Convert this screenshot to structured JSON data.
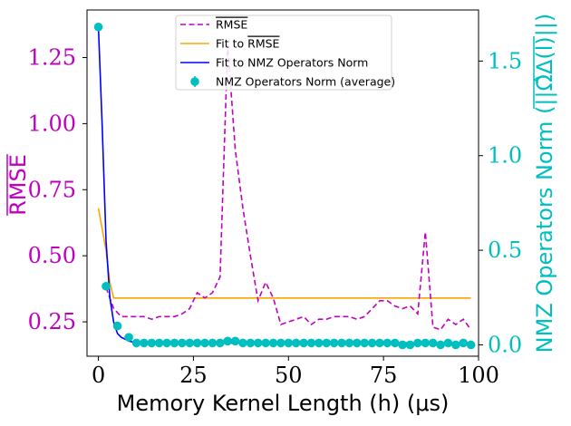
{
  "chart_data": {
    "type": "line",
    "title": "",
    "xlabel": "Memory Kernel Length (h) (μs)",
    "ylabel_left": "RMSE",
    "ylabel_right": "NMZ Operators Norm (||Ω̂Δ(l)||)",
    "xlim": [
      -3,
      100
    ],
    "ylim_left": [
      0.12,
      1.43
    ],
    "ylim_right": [
      -0.06,
      1.77
    ],
    "xticks": [
      0,
      25,
      50,
      75,
      100
    ],
    "yticks_left": [
      0.25,
      0.5,
      0.75,
      1.0,
      1.25
    ],
    "yticks_right": [
      0.0,
      0.5,
      1.0,
      1.5
    ],
    "xtick_labels": [
      "0",
      "25",
      "50",
      "75",
      "100"
    ],
    "ytick_labels_left": [
      "0.25",
      "0.50",
      "0.75",
      "1.00",
      "1.25"
    ],
    "ytick_labels_right": [
      "0.0",
      "0.5",
      "1.0",
      "1.5"
    ],
    "colors": {
      "rmse": "#c000c0",
      "fit_rmse": "#ffa500",
      "fit_nmz": "#0000ff",
      "nmz": "#00bfbf",
      "axis": "#000000"
    },
    "legend_position": "top-center",
    "series": [
      {
        "name": "RMSE (overline)",
        "axis": "left",
        "style": "dashed",
        "x": [
          2,
          4,
          6,
          8,
          10,
          12,
          14,
          16,
          18,
          20,
          22,
          24,
          26,
          28,
          30,
          32,
          34,
          36,
          38,
          40,
          42,
          44,
          46,
          48,
          50,
          52,
          54,
          56,
          58,
          60,
          62,
          64,
          66,
          68,
          70,
          72,
          74,
          76,
          78,
          80,
          82,
          84,
          86,
          88,
          90,
          92,
          94,
          96,
          98
        ],
        "values": [
          0.38,
          0.3,
          0.27,
          0.27,
          0.27,
          0.27,
          0.26,
          0.27,
          0.27,
          0.27,
          0.28,
          0.3,
          0.36,
          0.34,
          0.36,
          0.42,
          1.3,
          0.9,
          0.68,
          0.5,
          0.33,
          0.4,
          0.34,
          0.24,
          0.25,
          0.26,
          0.27,
          0.24,
          0.26,
          0.26,
          0.27,
          0.27,
          0.27,
          0.26,
          0.27,
          0.3,
          0.33,
          0.33,
          0.31,
          0.3,
          0.31,
          0.28,
          0.59,
          0.23,
          0.22,
          0.26,
          0.24,
          0.26,
          0.22
        ]
      },
      {
        "name": "Fit to RMSE (overline)",
        "axis": "left",
        "style": "solid",
        "x": [
          0,
          2,
          3,
          4,
          6,
          8,
          10,
          20,
          40,
          60,
          80,
          98
        ],
        "values": [
          0.68,
          0.52,
          0.4,
          0.34,
          0.34,
          0.34,
          0.34,
          0.34,
          0.34,
          0.34,
          0.34,
          0.34
        ]
      },
      {
        "name": "Fit to NMZ Operators Norm",
        "axis": "right",
        "style": "solid",
        "x": [
          0,
          1,
          2,
          3,
          4,
          5,
          6,
          8,
          10,
          15,
          20,
          40,
          60,
          80,
          98
        ],
        "values": [
          1.68,
          1.15,
          0.55,
          0.25,
          0.12,
          0.06,
          0.04,
          0.02,
          0.01,
          0.01,
          0.01,
          0.01,
          0.01,
          0.01,
          0.01
        ]
      },
      {
        "name": "NMZ Operators Norm (average)",
        "axis": "right",
        "style": "points",
        "x": [
          0,
          2,
          5,
          8,
          10,
          12,
          14,
          16,
          18,
          20,
          22,
          24,
          26,
          28,
          30,
          32,
          34,
          36,
          38,
          40,
          42,
          44,
          46,
          48,
          50,
          52,
          54,
          56,
          58,
          60,
          62,
          64,
          66,
          68,
          70,
          72,
          74,
          76,
          78,
          80,
          82,
          84,
          86,
          88,
          90,
          92,
          94,
          96,
          98
        ],
        "values": [
          1.68,
          0.31,
          0.1,
          0.04,
          0.01,
          0.01,
          0.01,
          0.01,
          0.01,
          0.01,
          0.01,
          0.01,
          0.01,
          0.01,
          0.01,
          0.01,
          0.02,
          0.02,
          0.01,
          0.01,
          0.01,
          0.01,
          0.01,
          0.01,
          0.01,
          0.01,
          0.01,
          0.01,
          0.01,
          0.01,
          0.01,
          0.01,
          0.01,
          0.01,
          0.01,
          0.01,
          0.01,
          0.01,
          0.01,
          0.0,
          0.0,
          0.01,
          0.01,
          0.01,
          0.0,
          0.01,
          0.0,
          0.01,
          0.0
        ]
      }
    ],
    "legend": [
      {
        "label": "RMSE",
        "overline": true,
        "kind": "dashed",
        "series": 0
      },
      {
        "label_prefix": "Fit to ",
        "label": "RMSE",
        "overline": true,
        "kind": "solid",
        "series": 1
      },
      {
        "label": "Fit to NMZ Operators Norm",
        "overline": false,
        "kind": "solid",
        "series": 2
      },
      {
        "label": "NMZ Operators Norm (average)",
        "overline": false,
        "kind": "marker",
        "series": 3
      }
    ]
  }
}
